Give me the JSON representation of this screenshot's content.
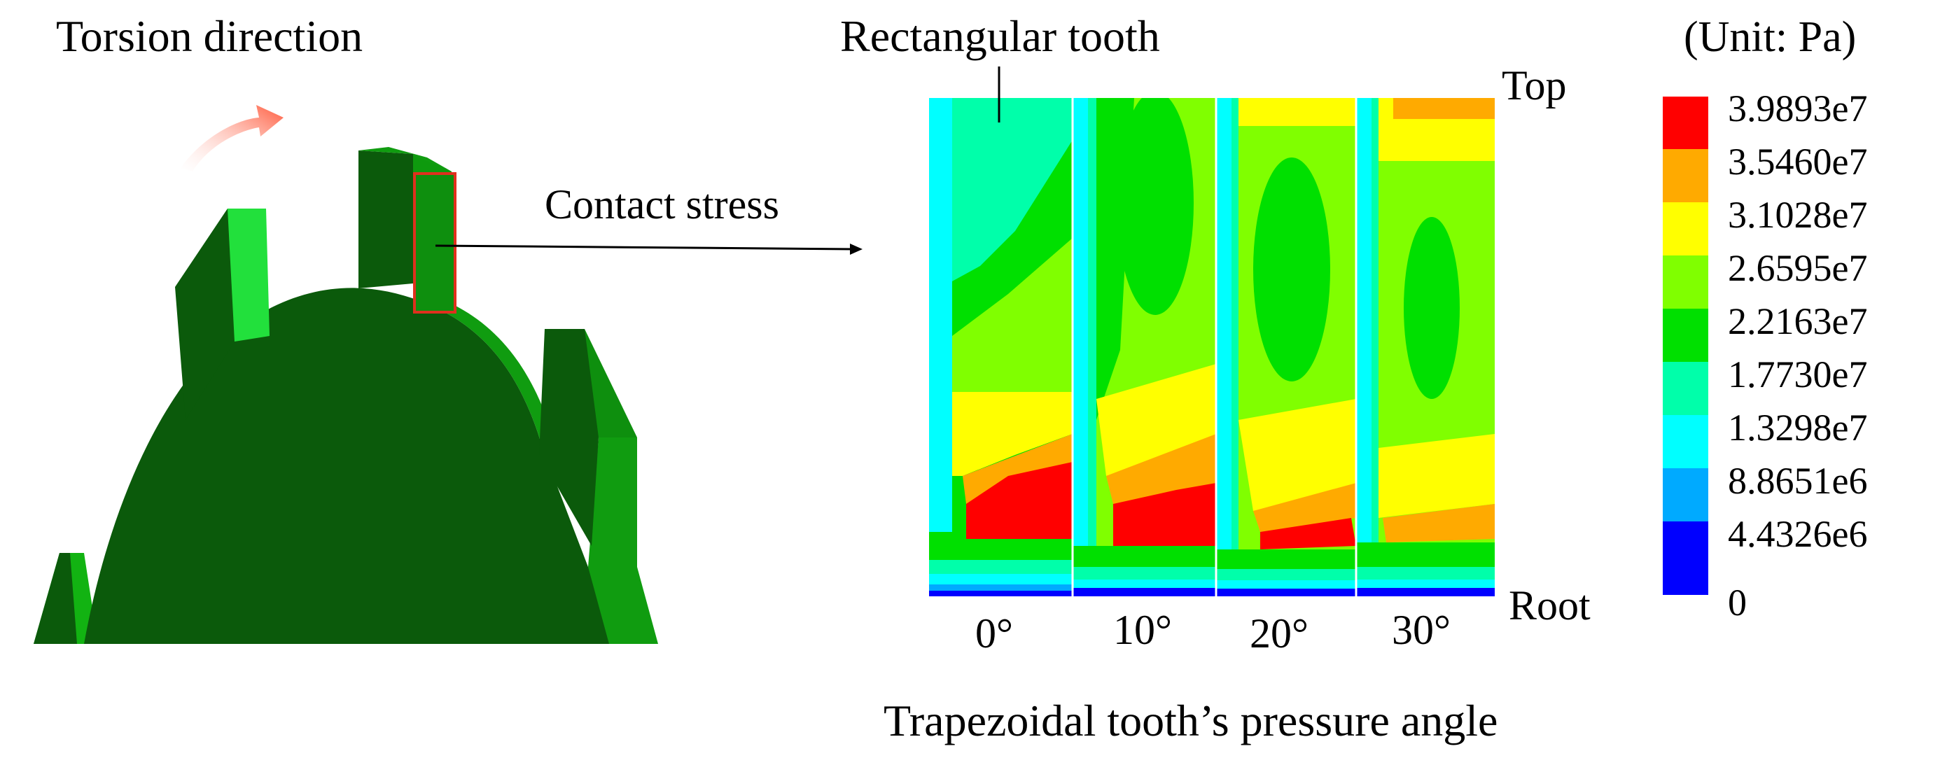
{
  "labels": {
    "torsion_direction": "Torsion direction",
    "rectangular_tooth": "Rectangular tooth",
    "contact_stress": "Contact stress",
    "top": "Top",
    "root": "Root",
    "unit": "(Unit: Pa)",
    "x_axis_title": "Trapezoidal tooth’s pressure angle"
  },
  "angles": [
    "0°",
    "10°",
    "20°",
    "30°"
  ],
  "legend": {
    "levels": [
      {
        "label": "3.9893e7",
        "color": "#ff0000"
      },
      {
        "label": "3.5460e7",
        "color": "#ffaa00"
      },
      {
        "label": "3.1028e7",
        "color": "#ffff00"
      },
      {
        "label": "2.6595e7",
        "color": "#80ff00"
      },
      {
        "label": "2.2163e7",
        "color": "#00e000"
      },
      {
        "label": "1.7730e7",
        "color": "#00ffaa"
      },
      {
        "label": "1.3298e7",
        "color": "#00ffff"
      },
      {
        "label": "8.8651e6",
        "color": "#00aaff"
      },
      {
        "label": "4.4326e6",
        "color": "#0000ff"
      }
    ],
    "min_label": "0"
  },
  "colors": {
    "dark_green": "#0b5a0b",
    "mid_green": "#0e9a0e",
    "light_green": "#22e03c",
    "highlight_box": "#e0301e",
    "arrow": "#ff8a6a"
  }
}
